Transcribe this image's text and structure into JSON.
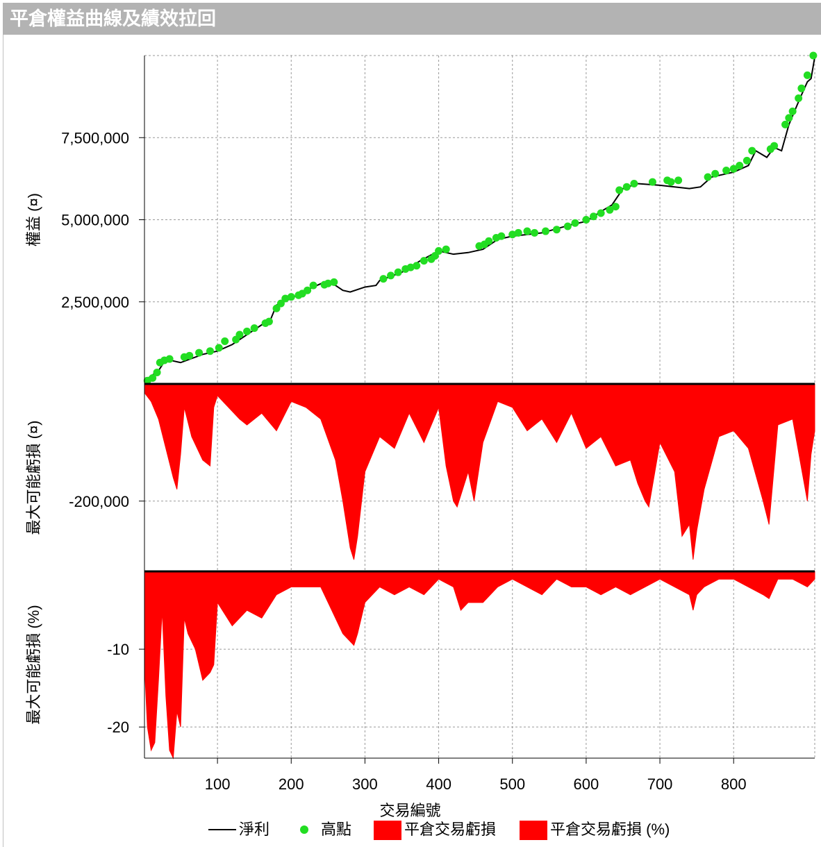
{
  "window": {
    "title": "平倉權益曲線及績效拉回"
  },
  "colors": {
    "line": "#000000",
    "highs": "#22dd22",
    "loss": "#ff0000",
    "grid": "#999999",
    "titlebar": "#b3b3b3"
  },
  "chart_data": [
    {
      "type": "line",
      "panel": "equity",
      "ylabel": "權益 (¤)",
      "ylim": [
        0,
        10000000
      ],
      "xlim": [
        1,
        910
      ],
      "yticks": [
        2500000,
        5000000,
        7500000
      ],
      "ytick_labels": [
        "2,500,000",
        "5,000,000",
        "7,500,000"
      ],
      "grid": true,
      "series": [
        {
          "name": "淨利",
          "style": "line",
          "x": [
            1,
            20,
            30,
            50,
            80,
            100,
            120,
            140,
            160,
            170,
            180,
            200,
            220,
            245,
            260,
            270,
            280,
            300,
            315,
            320,
            350,
            375,
            400,
            420,
            440,
            460,
            480,
            500,
            540,
            580,
            600,
            620,
            635,
            650,
            670,
            700,
            720,
            740,
            755,
            770,
            800,
            820,
            830,
            845,
            855,
            865,
            875,
            890,
            900,
            905,
            910
          ],
          "values": [
            100000,
            400000,
            750000,
            650000,
            900000,
            1000000,
            1200000,
            1500000,
            1800000,
            1850000,
            2400000,
            2600000,
            2850000,
            3100000,
            3000000,
            2850000,
            2800000,
            2950000,
            3000000,
            3150000,
            3400000,
            3750000,
            4050000,
            3950000,
            4000000,
            4100000,
            4400000,
            4500000,
            4600000,
            4850000,
            4950000,
            5250000,
            5450000,
            5950000,
            6100000,
            6050000,
            6000000,
            5950000,
            6000000,
            6300000,
            6450000,
            6650000,
            7100000,
            6900000,
            7200000,
            7100000,
            7900000,
            8700000,
            9200000,
            9300000,
            9950000
          ]
        },
        {
          "name": "高點",
          "style": "markers",
          "x": [
            5,
            12,
            18,
            22,
            28,
            35,
            55,
            62,
            75,
            90,
            102,
            110,
            125,
            130,
            140,
            150,
            165,
            170,
            180,
            186,
            192,
            200,
            210,
            215,
            222,
            230,
            245,
            250,
            258,
            325,
            335,
            345,
            355,
            362,
            370,
            380,
            390,
            395,
            400,
            410,
            455,
            462,
            468,
            478,
            485,
            500,
            508,
            520,
            530,
            545,
            560,
            575,
            585,
            600,
            610,
            620,
            632,
            640,
            645,
            655,
            665,
            690,
            710,
            715,
            725,
            765,
            775,
            790,
            800,
            808,
            818,
            825,
            850,
            855,
            870,
            875,
            880,
            888,
            892,
            900,
            908
          ],
          "values": [
            100000,
            180000,
            350000,
            650000,
            720000,
            760000,
            820000,
            860000,
            950000,
            1000000,
            1100000,
            1300000,
            1350000,
            1500000,
            1600000,
            1700000,
            1850000,
            1900000,
            2300000,
            2450000,
            2600000,
            2650000,
            2700000,
            2750000,
            2850000,
            3000000,
            3020000,
            3060000,
            3100000,
            3200000,
            3300000,
            3400000,
            3500000,
            3550000,
            3600000,
            3750000,
            3800000,
            3900000,
            4050000,
            4100000,
            4200000,
            4250000,
            4350000,
            4450000,
            4500000,
            4550000,
            4600000,
            4650000,
            4600000,
            4650000,
            4700000,
            4800000,
            4900000,
            5000000,
            5100000,
            5200000,
            5300000,
            5400000,
            5900000,
            6000000,
            6100000,
            6150000,
            6200000,
            6150000,
            6200000,
            6300000,
            6400000,
            6500000,
            6550000,
            6650000,
            6800000,
            7100000,
            7150000,
            7250000,
            7900000,
            8100000,
            8300000,
            8700000,
            9000000,
            9400000,
            10000000
          ]
        }
      ]
    },
    {
      "type": "area",
      "panel": "drawdown-value",
      "ylabel": "最大可能虧損 (¤)",
      "ylim": [
        -320000,
        0
      ],
      "yticks": [
        -200000
      ],
      "ytick_labels": [
        "-200,000"
      ],
      "grid": true,
      "series": [
        {
          "name": "平倉交易虧損",
          "x": [
            1,
            10,
            20,
            30,
            40,
            45,
            50,
            55,
            65,
            80,
            90,
            95,
            100,
            130,
            140,
            160,
            180,
            200,
            220,
            240,
            260,
            270,
            280,
            285,
            290,
            300,
            320,
            340,
            360,
            380,
            400,
            410,
            420,
            425,
            440,
            448,
            460,
            480,
            500,
            520,
            540,
            560,
            580,
            600,
            620,
            640,
            660,
            670,
            680,
            685,
            700,
            720,
            730,
            740,
            745,
            750,
            760,
            780,
            800,
            820,
            840,
            848,
            860,
            880,
            900,
            905,
            910
          ],
          "values": [
            -15000,
            -30000,
            -60000,
            -110000,
            -160000,
            -180000,
            -120000,
            -40000,
            -90000,
            -130000,
            -140000,
            -40000,
            -20000,
            -60000,
            -70000,
            -50000,
            -80000,
            -30000,
            -40000,
            -60000,
            -130000,
            -200000,
            -280000,
            -300000,
            -260000,
            -150000,
            -90000,
            -110000,
            -50000,
            -100000,
            -40000,
            -140000,
            -200000,
            -210000,
            -150000,
            -200000,
            -100000,
            -30000,
            -40000,
            -80000,
            -60000,
            -100000,
            -50000,
            -110000,
            -90000,
            -140000,
            -130000,
            -170000,
            -200000,
            -210000,
            -100000,
            -150000,
            -260000,
            -240000,
            -300000,
            -250000,
            -180000,
            -90000,
            -80000,
            -110000,
            -200000,
            -240000,
            -70000,
            -60000,
            -200000,
            -120000,
            -80000
          ]
        }
      ]
    },
    {
      "type": "area",
      "panel": "drawdown-percent",
      "ylabel": "最大可能虧損 (%)",
      "ylim": [
        -24,
        0
      ],
      "yticks": [
        -10,
        -20
      ],
      "ytick_labels": [
        "-10",
        "-20"
      ],
      "grid": true,
      "series": [
        {
          "name": "平倉交易虧損 (%)",
          "x": [
            1,
            5,
            10,
            15,
            20,
            25,
            30,
            35,
            40,
            45,
            50,
            55,
            60,
            70,
            80,
            90,
            95,
            100,
            120,
            140,
            160,
            180,
            200,
            220,
            240,
            260,
            270,
            280,
            285,
            290,
            300,
            320,
            340,
            360,
            380,
            400,
            420,
            430,
            440,
            460,
            480,
            500,
            520,
            540,
            560,
            580,
            600,
            620,
            640,
            660,
            680,
            700,
            720,
            740,
            745,
            750,
            760,
            780,
            800,
            820,
            840,
            848,
            860,
            880,
            900,
            910
          ],
          "values": [
            -12,
            -20,
            -23,
            -22,
            -14,
            -5,
            -16,
            -23,
            -24,
            -18,
            -20,
            -6,
            -8,
            -10,
            -14,
            -13,
            -12,
            -4,
            -7,
            -5,
            -6,
            -3,
            -2,
            -2,
            -2,
            -6,
            -8,
            -9,
            -9.5,
            -8,
            -4,
            -2,
            -3,
            -2,
            -3,
            -1,
            -2,
            -5,
            -4,
            -4,
            -2,
            -1,
            -2,
            -3,
            -1,
            -2,
            -2,
            -3,
            -2,
            -3,
            -2,
            -1,
            -2,
            -3,
            -5,
            -3,
            -2,
            -1,
            -1,
            -2,
            -3,
            -3.5,
            -1,
            -1,
            -2,
            -1
          ]
        }
      ]
    }
  ],
  "xaxis": {
    "label": "交易編號",
    "ticks": [
      100,
      200,
      300,
      400,
      500,
      600,
      700,
      800
    ],
    "tick_labels": [
      "100",
      "200",
      "300",
      "400",
      "500",
      "600",
      "700",
      "800"
    ]
  },
  "legend": {
    "position": "bottom",
    "items": [
      {
        "label": "淨利",
        "swatch": "line",
        "color": "#000000"
      },
      {
        "label": "高點",
        "swatch": "dot",
        "color": "#22dd22"
      },
      {
        "label": "平倉交易虧損",
        "swatch": "box",
        "color": "#ff0000"
      },
      {
        "label": "平倉交易虧損 (%)",
        "swatch": "box",
        "color": "#ff0000"
      }
    ]
  }
}
